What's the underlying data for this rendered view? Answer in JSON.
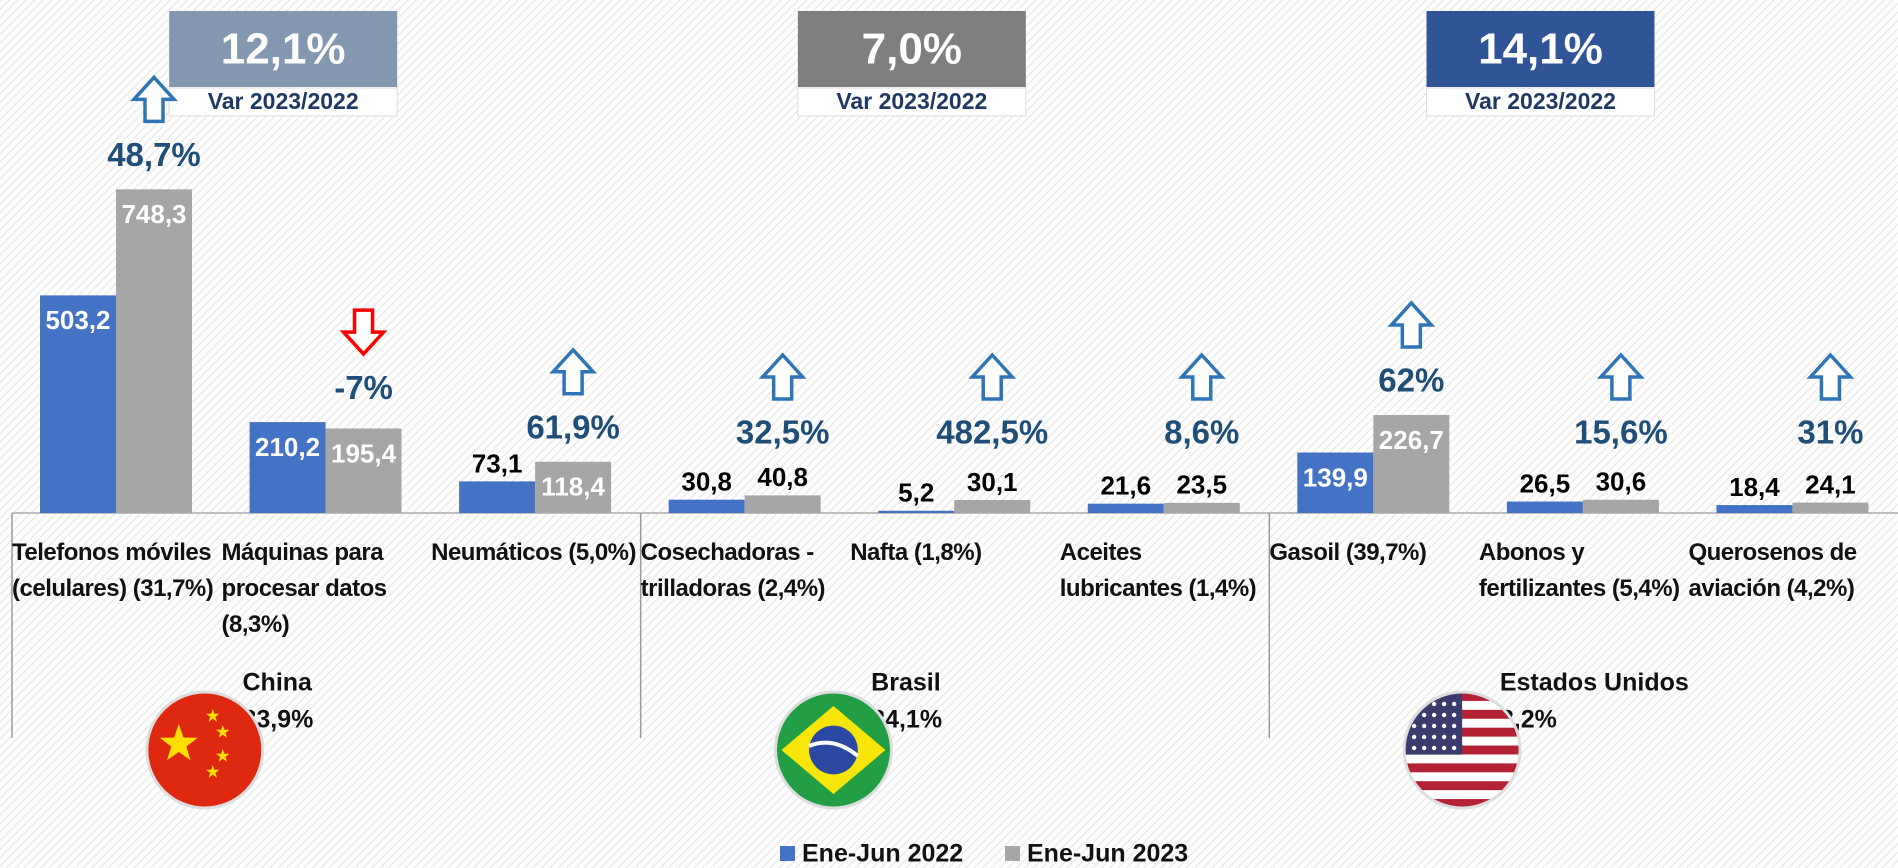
{
  "chart_data": {
    "type": "bar",
    "categories": [
      "Telefonos móviles (celulares) (31,7%)",
      "Máquinas para procesar datos (8,3%)",
      "Neumáticos (5,0%)",
      "Cosechadoras - trilladoras (2,4%)",
      "Nafta (1,8%)",
      "Aceites lubricantes (1,4%)",
      "Gasoil (39,7%)",
      "Abonos y fertilizantes (5,4%)",
      "Querosenos de aviación (4,2%)"
    ],
    "series": [
      {
        "name": "Ene-Jun 2022",
        "color": "#4472c4",
        "values": [
          503.2,
          210.2,
          73.1,
          30.8,
          5.2,
          21.6,
          139.9,
          26.5,
          18.4
        ],
        "value_labels": [
          "503,2",
          "210,2",
          "73,1",
          "30,8",
          "5,2",
          "21,6",
          "139,9",
          "26,5",
          "18,4"
        ]
      },
      {
        "name": "Ene-Jun 2023",
        "color": "#a6a6a6",
        "values": [
          748.3,
          195.4,
          118.4,
          40.8,
          30.1,
          23.5,
          226.7,
          30.6,
          24.1
        ],
        "value_labels": [
          "748,3",
          "195,4",
          "118,4",
          "40,8",
          "30,1",
          "23,5",
          "226,7",
          "30,6",
          "24,1"
        ]
      }
    ],
    "changes": {
      "values": [
        48.7,
        -7,
        61.9,
        32.5,
        482.5,
        8.6,
        62,
        15.6,
        31
      ],
      "value_labels": [
        "48,7%",
        "-7%",
        "61,9%",
        "32,5%",
        "482,5%",
        "8,6%",
        "62%",
        "15,6%",
        "31%"
      ]
    },
    "groups": [
      {
        "name": "China",
        "share": "33,9%",
        "variation": "12,1%",
        "caption": "Var 2023/2022",
        "color": "#8497b0"
      },
      {
        "name": "Brasil",
        "share": "24,1%",
        "variation": "7,0%",
        "caption": "Var 2023/2022",
        "color": "#7f7f7f"
      },
      {
        "name": "Estados Unidos",
        "share": "8,2%",
        "variation": "14,1%",
        "caption": "Var 2023/2022",
        "color": "#2f5597"
      }
    ],
    "ylim": [
      0,
      800
    ]
  }
}
